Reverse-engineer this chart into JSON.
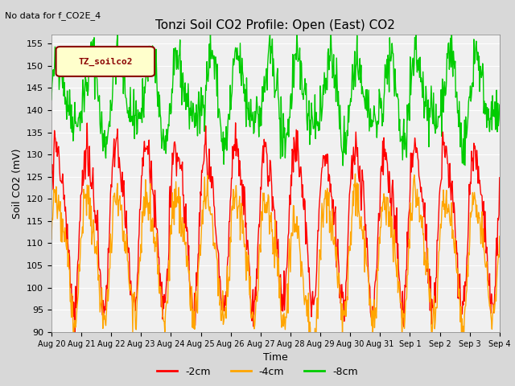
{
  "title": "Tonzi Soil CO2 Profile: Open (East) CO2",
  "subtitle": "No data for f_CO2E_4",
  "ylabel": "Soil CO2 (mV)",
  "xlabel": "Time",
  "ylim": [
    90,
    157
  ],
  "yticks": [
    90,
    95,
    100,
    105,
    110,
    115,
    120,
    125,
    130,
    135,
    140,
    145,
    150,
    155
  ],
  "legend_label": "TZ_soilco2",
  "series_labels": [
    "-2cm",
    "-4cm",
    "-8cm"
  ],
  "series_colors": [
    "#ff0000",
    "#ffa500",
    "#00cc00"
  ],
  "line_width": 1.0,
  "bg_color": "#d8d8d8",
  "plot_bg_color": "#f0f0f0",
  "n_days": 15,
  "x_tick_labels": [
    "Aug 20",
    "Aug 21",
    "Aug 22",
    "Aug 23",
    "Aug 24",
    "Aug 25",
    "Aug 26",
    "Aug 27",
    "Aug 28",
    "Aug 29",
    "Aug 30",
    "Aug 31",
    "Sep 1",
    "Sep 2",
    "Sep 3",
    "Sep 4"
  ],
  "seed": 42
}
